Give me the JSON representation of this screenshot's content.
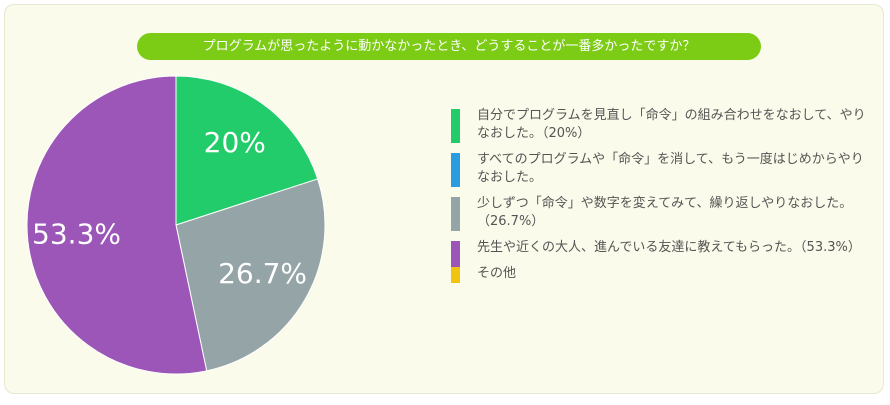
{
  "title": "プログラムが思ったように動かなかったとき、どうすることが一番多かったですか？",
  "colors": {
    "green": "#22cc6a",
    "blue": "#2a9de0",
    "gray": "#95a4a6",
    "purple": "#9b56b8",
    "yellow": "#f1c40f",
    "title_bg": "#7ccb14",
    "card_bg": "#fafbea"
  },
  "chart_data": {
    "type": "pie",
    "slices": [
      {
        "label": "自分でプログラムを見直し「命令」の組み合わせをなおして、やりなおした。（20%）",
        "value": 20,
        "display": "20%",
        "color": "#22cc6a"
      },
      {
        "label": "すべてのプログラムや「命令」を消して、もう一度はじめからやりなおした。",
        "value": 0,
        "display": "",
        "color": "#2a9de0"
      },
      {
        "label": "少しずつ「命令」や数字を変えてみて、繰り返しやりなおした。（26.7%）",
        "value": 26.7,
        "display": "26.7%",
        "color": "#95a4a6"
      },
      {
        "label": "先生や近くの大人、進んでいる友達に教えてもらった。（53.3%）",
        "value": 53.3,
        "display": "53.3%",
        "color": "#9b56b8"
      },
      {
        "label": "その他",
        "value": 0,
        "display": "",
        "color": "#f1c40f"
      }
    ],
    "legend_position": "right"
  }
}
